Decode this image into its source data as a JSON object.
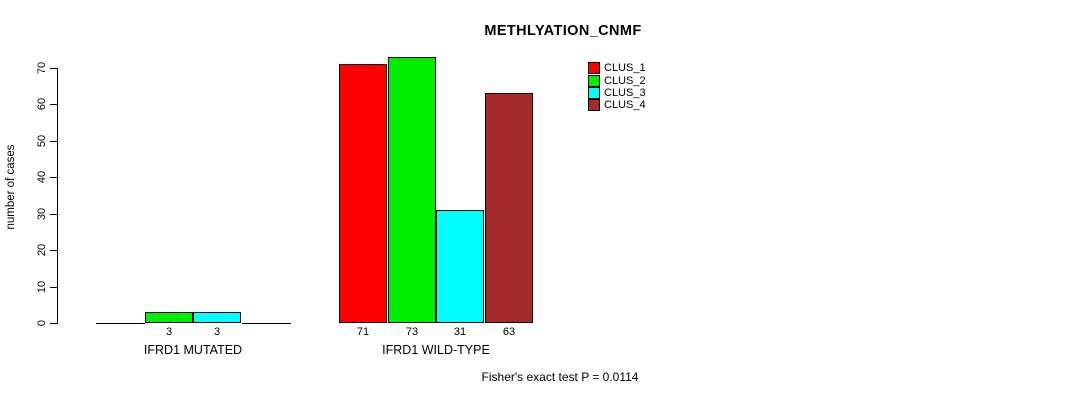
{
  "chart_data": {
    "type": "bar",
    "title": "METHLYATION_CNMF",
    "ylabel": "number of cases",
    "xlabel": "",
    "ylim": [
      0,
      70
    ],
    "yticks": [
      0,
      10,
      20,
      30,
      40,
      50,
      60,
      70
    ],
    "grid": false,
    "categories": [
      "IFRD1 MUTATED",
      "IFRD1 WILD-TYPE"
    ],
    "series": [
      {
        "name": "CLUS_1",
        "color": "#ff0000",
        "values": [
          0,
          71
        ]
      },
      {
        "name": "CLUS_2",
        "color": "#00ee00",
        "values": [
          3,
          73
        ]
      },
      {
        "name": "CLUS_3",
        "color": "#00ffff",
        "values": [
          3,
          31
        ]
      },
      {
        "name": "CLUS_4",
        "color": "#a52a2a",
        "values": [
          0,
          63
        ]
      }
    ],
    "bar_value_labels": [
      [
        "",
        "3",
        "3",
        ""
      ],
      [
        "71",
        "73",
        "31",
        "63"
      ]
    ],
    "legend": {
      "position": "top-right",
      "entries": [
        "CLUS_1",
        "CLUS_2",
        "CLUS_3",
        "CLUS_4"
      ]
    },
    "footnote": "Fisher's exact test P = 0.0114"
  }
}
